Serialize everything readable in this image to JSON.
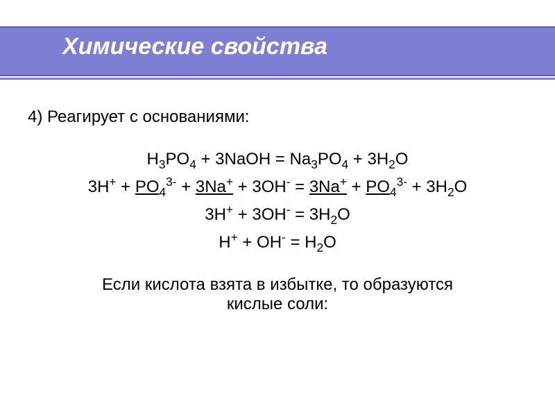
{
  "colors": {
    "header_band": "#7e7ed4",
    "header_border": "#5a5ab8",
    "title_text": "#ffffff",
    "body_text": "#000000",
    "background": "#ffffff"
  },
  "typography": {
    "title_fontsize": 34,
    "title_style": "italic",
    "title_weight": "bold",
    "body_fontsize": 24,
    "font_family": "Arial"
  },
  "title": "Химические свойства",
  "intro": "4) Реагирует с основаниями:",
  "equations": {
    "eq1": "H_3PO_4 + 3NaOH = Na_3PO_4 + 3H_2O",
    "eq2": "3H^+ + _PO_4^3- + _3Na^+_ + 3OH^- = _3Na^+_ + _PO_4^3- + 3H_2O",
    "eq3": "3H^+ + 3OH^- = 3H_2O",
    "eq4": "H^+ + OH^- = H_2O"
  },
  "note_line1": "Если кислота взята в избытке, то образуются",
  "note_line2": "кислые соли:"
}
